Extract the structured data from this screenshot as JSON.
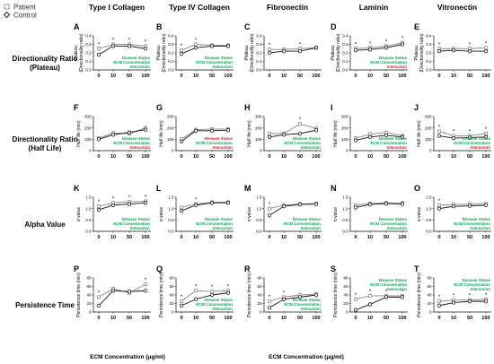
{
  "legend": {
    "patient": "Patient",
    "control": "Control",
    "patient_marker": "square-open-icon",
    "control_marker": "diamond-open-icon"
  },
  "columns": [
    "Type I Collagen",
    "Type IV Collagen",
    "Fibronectin",
    "Laminin",
    "Vitronectin"
  ],
  "rows": [
    {
      "label_lines": [
        "Directionality Ratio",
        "(Plateau)"
      ]
    },
    {
      "label_lines": [
        "Directionality Ratio",
        "(Half Life)"
      ]
    },
    {
      "label_lines": [
        "Alpha Value"
      ]
    },
    {
      "label_lines": [
        "Persistence Time"
      ]
    }
  ],
  "panel_letters": [
    [
      "A",
      "B",
      "C",
      "D",
      "E"
    ],
    [
      "F",
      "G",
      "H",
      "I",
      "J"
    ],
    [
      "K",
      "L",
      "M",
      "N",
      "O"
    ],
    [
      "P",
      "Q",
      "R",
      "S",
      "T"
    ]
  ],
  "x_axis_title": "ECM Concentration (μg/ml)",
  "colors": {
    "sig": "#00a651",
    "nonsig": "#e8111b",
    "patient": "#888888",
    "control": "#111111"
  },
  "stats_labels": [
    "Disease Status",
    "ECM Concentration",
    "Interaction"
  ],
  "chart_data": {
    "type": "line",
    "x": [
      "0",
      "10",
      "50",
      "100"
    ],
    "series_names": [
      "Patient",
      "Control"
    ],
    "rows": [
      {
        "ylabel_lines": [
          "Plateau",
          "(Directionality ratio)"
        ],
        "ylim": [
          0,
          0.4
        ],
        "yticks": [
          "0.0",
          "0.1",
          "0.2",
          "0.3",
          "0.4"
        ],
        "panels": [
          {
            "patient": [
              0.25,
              0.3,
              0.3,
              0.28
            ],
            "control": [
              0.18,
              0.28,
              0.28,
              0.25
            ],
            "stars": [
              1,
              1,
              1,
              1
            ],
            "stats": [
              "sig",
              "sig",
              "sig"
            ],
            "stats_pos": "bottom"
          },
          {
            "patient": [
              0.23,
              0.3,
              0.29,
              0.29
            ],
            "control": [
              0.19,
              0.26,
              0.28,
              0.28
            ],
            "stars": [
              1,
              1,
              0,
              0
            ],
            "stats": [
              "sig",
              "sig",
              "sig"
            ],
            "stats_pos": "bottom"
          },
          {
            "patient": [
              0.24,
              0.24,
              0.25,
              0.26
            ],
            "control": [
              0.2,
              0.22,
              0.22,
              0.26
            ],
            "stars": [
              1,
              0,
              1,
              0
            ],
            "stats": [],
            "stats_pos": "bottom"
          },
          {
            "patient": [
              0.25,
              0.26,
              0.28,
              0.32
            ],
            "control": [
              0.23,
              0.24,
              0.26,
              0.3
            ],
            "stars": [
              1,
              1,
              1,
              1
            ],
            "stats": [
              "sig",
              "sig",
              "nonsig"
            ],
            "stats_pos": "bottom"
          },
          {
            "patient": [
              0.25,
              0.25,
              0.25,
              0.26
            ],
            "control": [
              0.22,
              0.23,
              0.22,
              0.22
            ],
            "stars": [
              1,
              0,
              1,
              1
            ],
            "stats": [],
            "stats_pos": "bottom"
          }
        ]
      },
      {
        "ylabel_lines": [
          "Half life (min)"
        ],
        "ylim": [
          0,
          300
        ],
        "yticks": [
          "0",
          "100",
          "200",
          "300"
        ],
        "panels": [
          {
            "patient": [
              110,
              155,
              150,
              200
            ],
            "control": [
              100,
              140,
              160,
              185
            ],
            "stars": [
              0,
              0,
              0,
              0
            ],
            "stats": [
              "sig",
              "sig",
              "nonsig"
            ],
            "stats_pos": "bottom"
          },
          {
            "patient": [
              100,
              185,
              190,
              190
            ],
            "control": [
              80,
              175,
              175,
              180
            ],
            "stars": [
              0,
              0,
              0,
              0
            ],
            "stats": [
              "nonsig",
              "sig",
              "nonsig"
            ],
            "stats_pos": "bottom"
          },
          {
            "patient": [
              150,
              150,
              235,
              195
            ],
            "control": [
              120,
              140,
              150,
              180
            ],
            "stars": [
              0,
              0,
              1,
              0
            ],
            "stats": [
              "sig",
              "sig",
              "sig"
            ],
            "stats_pos": "bottom"
          },
          {
            "patient": [
              110,
              145,
              160,
              130
            ],
            "control": [
              90,
              120,
              135,
              120
            ],
            "stars": [
              0,
              0,
              0,
              0
            ],
            "stats": [
              "sig",
              "sig",
              "nonsig"
            ],
            "stats_pos": "bottom"
          },
          {
            "patient": [
              170,
              130,
              130,
              150
            ],
            "control": [
              130,
              110,
              115,
              120
            ],
            "stars": [
              1,
              1,
              1,
              1
            ],
            "stats": [
              "sig",
              "sig",
              "nonsig"
            ],
            "stats_pos": "bottom"
          }
        ]
      },
      {
        "ylabel_lines": [
          "α value"
        ],
        "ylim": [
          0,
          1.5
        ],
        "yticks": [
          "0.0",
          "0.5",
          "1.0",
          "1.5"
        ],
        "panels": [
          {
            "patient": [
              1.1,
              1.25,
              1.3,
              1.32
            ],
            "control": [
              0.95,
              1.15,
              1.2,
              1.25
            ],
            "stars": [
              1,
              1,
              1,
              1
            ],
            "stats": [
              "sig",
              "sig",
              "sig"
            ],
            "stats_pos": "bottom"
          },
          {
            "patient": [
              1.05,
              1.2,
              1.28,
              1.28
            ],
            "control": [
              0.9,
              1.15,
              1.25,
              1.26
            ],
            "stars": [
              0,
              1,
              0,
              0
            ],
            "stats": [
              "sig",
              "sig",
              "sig"
            ],
            "stats_pos": "bottom"
          },
          {
            "patient": [
              1.0,
              1.15,
              1.2,
              1.22
            ],
            "control": [
              0.7,
              1.1,
              1.18,
              1.2
            ],
            "stars": [
              1,
              0,
              0,
              0
            ],
            "stats": [
              "sig",
              "sig",
              "sig"
            ],
            "stats_pos": "bottom"
          },
          {
            "patient": [
              1.15,
              1.22,
              1.25,
              1.25
            ],
            "control": [
              1.05,
              1.18,
              1.22,
              1.2
            ],
            "stars": [
              0,
              0,
              0,
              0
            ],
            "stats": [
              "sig",
              "sig",
              "sig"
            ],
            "stats_pos": "bottom"
          },
          {
            "patient": [
              1.15,
              1.18,
              1.2,
              1.22
            ],
            "control": [
              1.0,
              1.1,
              1.12,
              1.15
            ],
            "stars": [
              1,
              0,
              0,
              0
            ],
            "stats": [
              "sig",
              "sig",
              "sig"
            ],
            "stats_pos": "bottom"
          }
        ]
      },
      {
        "ylabel_lines": [
          "Persistence time (min)"
        ],
        "ylim": [
          0,
          80
        ],
        "yticks": [
          "0",
          "20",
          "40",
          "60",
          "80"
        ],
        "panels": [
          {
            "patient": [
              35,
              55,
              45,
              65
            ],
            "control": [
              15,
              50,
              48,
              50
            ],
            "stars": [
              1,
              0,
              0,
              1
            ],
            "stats": [],
            "stats_pos": "bottom"
          },
          {
            "patient": [
              25,
              50,
              48,
              50
            ],
            "control": [
              15,
              30,
              40,
              45
            ],
            "stars": [
              1,
              1,
              1,
              1
            ],
            "stats": [
              "sig",
              "sig",
              "sig"
            ],
            "stats_pos": "bottom"
          },
          {
            "patient": [
              25,
              35,
              40,
              42
            ],
            "control": [
              10,
              30,
              35,
              40
            ],
            "stars": [
              1,
              1,
              0,
              0
            ],
            "stats": [
              "sig",
              "sig",
              "sig"
            ],
            "stats_pos": "bottom"
          },
          {
            "patient": [
              30,
              38,
              38,
              38
            ],
            "control": [
              5,
              18,
              35,
              35
            ],
            "stars": [
              1,
              1,
              1,
              1
            ],
            "stats": [
              "sig",
              "sig",
              "sig"
            ],
            "stats_pos": "top"
          },
          {
            "patient": [
              25,
              28,
              28,
              30
            ],
            "control": [
              15,
              22,
              25,
              25
            ],
            "stars": [
              1,
              1,
              1,
              1
            ],
            "stats": [
              "sig",
              "sig",
              "sig"
            ],
            "stats_pos": "top"
          }
        ]
      }
    ]
  }
}
